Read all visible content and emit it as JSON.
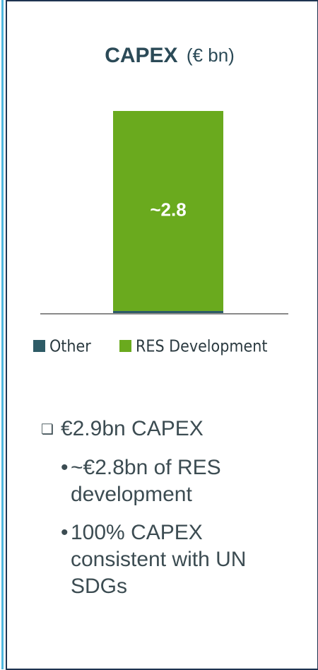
{
  "chart_data": {
    "type": "stacked_bar",
    "title": "CAPEX",
    "unit": "(€ bn)",
    "categories": [
      null
    ],
    "series": [
      {
        "name": "Other",
        "color": "#2e5b66",
        "values": [
          0.03
        ]
      },
      {
        "name": "RES Development",
        "color": "#6aaa1e",
        "values": [
          2.8
        ],
        "value_labels": [
          "~2.8"
        ]
      }
    ]
  },
  "bullets": [
    {
      "text": "€2.9bn CAPEX",
      "sub": [
        "~€2.8bn of RES development",
        "100% CAPEX consistent with UN SDGs"
      ]
    }
  ]
}
